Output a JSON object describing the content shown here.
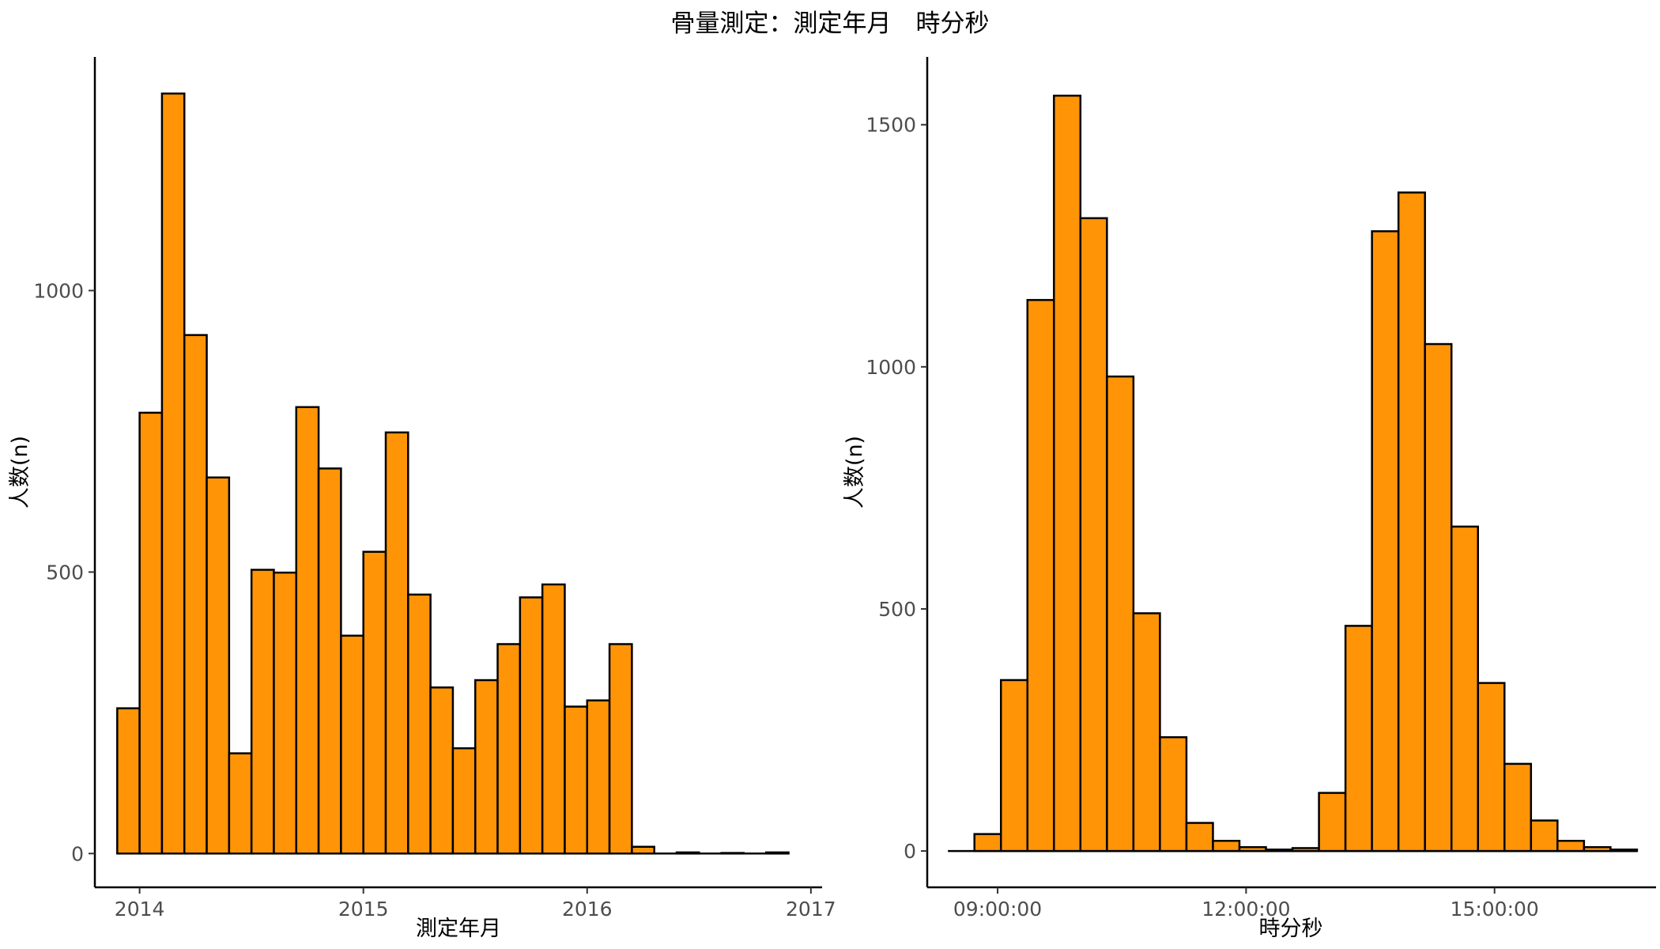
{
  "title": "骨量測定：測定年月　時分秒",
  "colors": {
    "bar_fill": "#FF9407",
    "bar_stroke": "#000000"
  },
  "chart_data": [
    {
      "type": "bar",
      "xlabel": "測定年月",
      "ylabel": "人数(n)",
      "xlim": [
        2013.8,
        2017.05
      ],
      "ylim": [
        -60,
        1415
      ],
      "x_ticks": [
        {
          "value": 2014,
          "label": "2014"
        },
        {
          "value": 2015,
          "label": "2015"
        },
        {
          "value": 2016,
          "label": "2016"
        },
        {
          "value": 2017,
          "label": "2017"
        }
      ],
      "y_ticks": [
        0,
        500,
        1000
      ],
      "bin_start": 2013.9,
      "bin_width": 0.1,
      "values": [
        258,
        783,
        1350,
        921,
        668,
        178,
        504,
        499,
        793,
        684,
        387,
        536,
        748,
        460,
        295,
        187,
        308,
        372,
        455,
        478,
        261,
        272,
        372,
        12,
        0,
        2,
        0,
        1,
        0,
        2
      ]
    },
    {
      "type": "bar",
      "xlabel": "時分秒",
      "ylabel": "人数(n)",
      "xlim": [
        8.15,
        16.95
      ],
      "ylim": [
        -75,
        1640
      ],
      "x_ticks": [
        {
          "value": 9,
          "label": "09:00:00"
        },
        {
          "value": 12,
          "label": "12:00:00"
        },
        {
          "value": 15,
          "label": "15:00:00"
        }
      ],
      "y_ticks": [
        0,
        500,
        1000,
        1500
      ],
      "bin_start": 8.4,
      "bin_width": 0.32,
      "values": [
        0,
        35,
        353,
        1138,
        1560,
        1307,
        980,
        491,
        235,
        58,
        21,
        8,
        3,
        6,
        120,
        465,
        1280,
        1360,
        1047,
        670,
        347,
        180,
        63,
        21,
        8,
        3
      ]
    }
  ]
}
